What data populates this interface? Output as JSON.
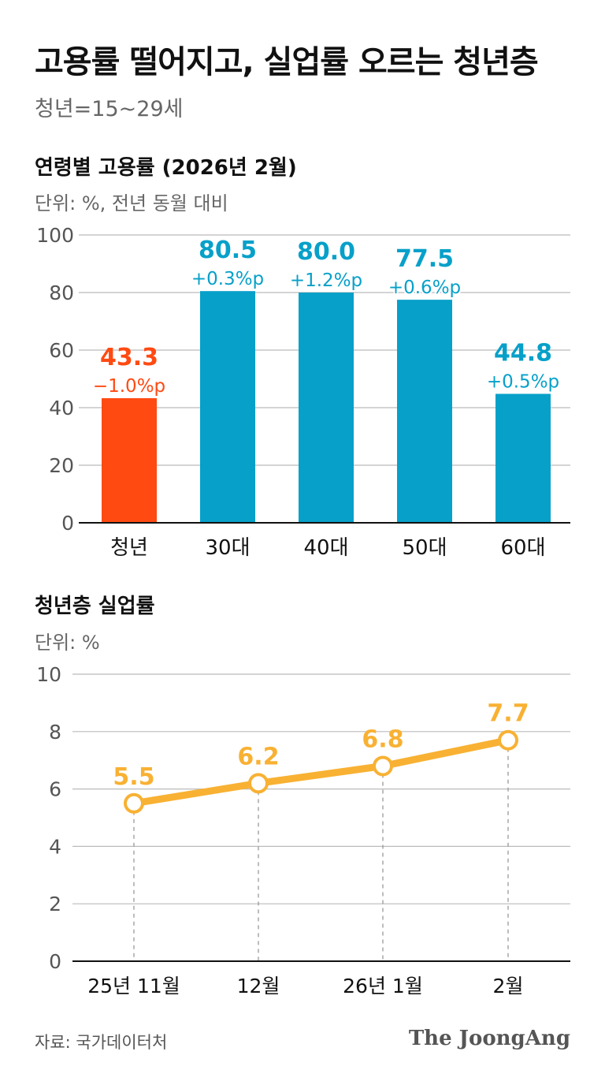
{
  "header": {
    "title": "고용률 떨어지고, 실업률 오르는 청년층",
    "subtitle": "청년=15~29세"
  },
  "colors": {
    "youth": "#FF4A12",
    "others": "#07A0C9",
    "line": "#F8B133",
    "grid": "#BBBBBB",
    "axis": "#111111"
  },
  "chart_data": [
    {
      "type": "bar",
      "title": "연령별 고용률 (2026년 2월)",
      "unit": "단위: %, 전년 동월 대비",
      "categories": [
        "청년",
        "30대",
        "40대",
        "50대",
        "60대"
      ],
      "values": [
        43.3,
        80.5,
        80.0,
        77.5,
        44.8
      ],
      "value_labels": [
        "43.3",
        "80.5",
        "80.0",
        "77.5",
        "44.8"
      ],
      "changes": [
        "−1.0%p",
        "+0.3%p",
        "+1.2%p",
        "+0.6%p",
        "+0.5%p"
      ],
      "yticks": [
        0,
        20,
        40,
        60,
        80,
        100
      ],
      "ylim": [
        0,
        100
      ]
    },
    {
      "type": "line",
      "title": "청년층 실업률",
      "unit": "단위: %",
      "categories": [
        "25년 11월",
        "12월",
        "26년 1월",
        "2월"
      ],
      "values": [
        5.5,
        6.2,
        6.8,
        7.7
      ],
      "value_labels": [
        "5.5",
        "6.2",
        "6.8",
        "7.7"
      ],
      "yticks": [
        0,
        2,
        4,
        6,
        8,
        10
      ],
      "ylim": [
        0,
        10
      ]
    }
  ],
  "footer": {
    "source": "자료: 국가데이터처",
    "brand": "The JoongAng"
  }
}
